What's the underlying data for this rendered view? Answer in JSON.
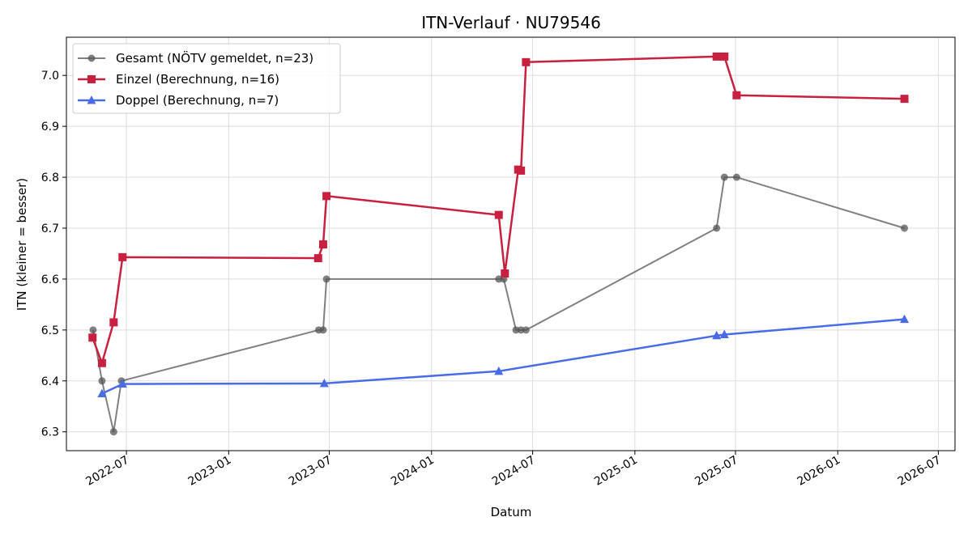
{
  "chart_data": {
    "type": "line",
    "title": "ITN-Verlauf · NU79546",
    "xlabel": "Datum",
    "ylabel": "ITN  (kleiner = besser)",
    "x_ticks": [
      "2022-07",
      "2023-01",
      "2023-07",
      "2024-01",
      "2024-07",
      "2025-01",
      "2025-07",
      "2026-01",
      "2026-07"
    ],
    "y_ticks": [
      "6.3",
      "6.4",
      "6.5",
      "6.6",
      "6.7",
      "6.8",
      "6.9",
      "7.0"
    ],
    "xlim": [
      "2022-03-15",
      "2026-07-31"
    ],
    "ylim": [
      6.263,
      7.075
    ],
    "grid": true,
    "legend_position": "top-left",
    "series": [
      {
        "name": "Gesamt (NÖTV gemeldet, n=23)",
        "color": "#555555",
        "marker": "circle",
        "x": [
          "2022-05-02",
          "2022-05-18",
          "2022-06-08",
          "2022-06-22",
          "2023-06-12",
          "2023-06-20",
          "2023-06-26",
          "2024-05-01",
          "2024-05-10",
          "2024-06-01",
          "2024-06-10",
          "2024-06-19",
          "2025-05-28",
          "2025-06-11",
          "2025-07-03",
          "2026-05-01"
        ],
        "values": [
          6.5,
          6.4,
          6.3,
          6.4,
          6.5,
          6.5,
          6.6,
          6.6,
          6.6,
          6.5,
          6.5,
          6.5,
          6.7,
          6.8,
          6.8,
          6.7
        ]
      },
      {
        "name": "Einzel (Berechnung, n=16)",
        "color": "#c8203f",
        "marker": "square",
        "x": [
          "2022-05-01",
          "2022-05-18",
          "2022-06-08",
          "2022-06-24",
          "2023-06-11",
          "2023-06-20",
          "2023-06-26",
          "2024-05-01",
          "2024-05-12",
          "2024-06-05",
          "2024-06-10",
          "2024-06-19",
          "2025-05-28",
          "2025-06-11",
          "2025-07-03",
          "2026-05-01"
        ],
        "values": [
          6.485,
          6.435,
          6.515,
          6.643,
          6.641,
          6.668,
          6.763,
          6.726,
          6.611,
          6.815,
          6.813,
          7.026,
          7.037,
          7.037,
          6.961,
          6.954
        ]
      },
      {
        "name": "Doppel (Berechnung, n=7)",
        "color": "#4a6be6",
        "marker": "triangle",
        "x": [
          "2022-05-18",
          "2022-06-24",
          "2023-06-22",
          "2024-05-01",
          "2025-05-28",
          "2025-06-11",
          "2026-05-01"
        ],
        "values": [
          6.375,
          6.394,
          6.395,
          6.419,
          6.489,
          6.491,
          6.521
        ]
      }
    ]
  }
}
